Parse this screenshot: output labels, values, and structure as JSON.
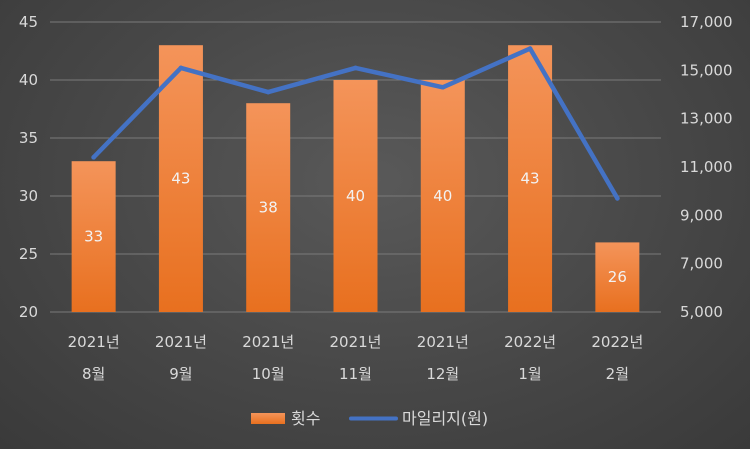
{
  "chart_data": {
    "type": "bar",
    "categories": [
      [
        "2021년",
        "8월"
      ],
      [
        "2021년",
        "9월"
      ],
      [
        "2021년",
        "10월"
      ],
      [
        "2021년",
        "11월"
      ],
      [
        "2021년",
        "12월"
      ],
      [
        "2022년",
        "1월"
      ],
      [
        "2022년",
        "2월"
      ]
    ],
    "series": [
      {
        "name": "횟수",
        "type": "bar",
        "axis": "left",
        "color": "#ed7d31",
        "values": [
          33,
          43,
          38,
          40,
          40,
          43,
          26
        ],
        "data_labels": [
          "33",
          "43",
          "38",
          "40",
          "40",
          "43",
          "26"
        ]
      },
      {
        "name": "마일리지(원)",
        "type": "line",
        "axis": "right",
        "color": "#4472c4",
        "values": [
          11400,
          15100,
          14100,
          15100,
          14300,
          15900,
          9700
        ]
      }
    ],
    "y_left": {
      "lim": [
        20,
        45
      ],
      "ticks": [
        20,
        25,
        30,
        35,
        40,
        45
      ],
      "tick_labels": [
        "20",
        "25",
        "30",
        "35",
        "40",
        "45"
      ]
    },
    "y_right": {
      "lim": [
        5000,
        17000
      ],
      "ticks": [
        5000,
        7000,
        9000,
        11000,
        13000,
        15000,
        17000
      ],
      "tick_labels": [
        "5,000",
        "7,000",
        "9,000",
        "11,000",
        "13,000",
        "15,000",
        "17,000"
      ]
    },
    "grid": true,
    "legend_position": "bottom",
    "title": "",
    "xlabel": "",
    "ylabel": ""
  }
}
